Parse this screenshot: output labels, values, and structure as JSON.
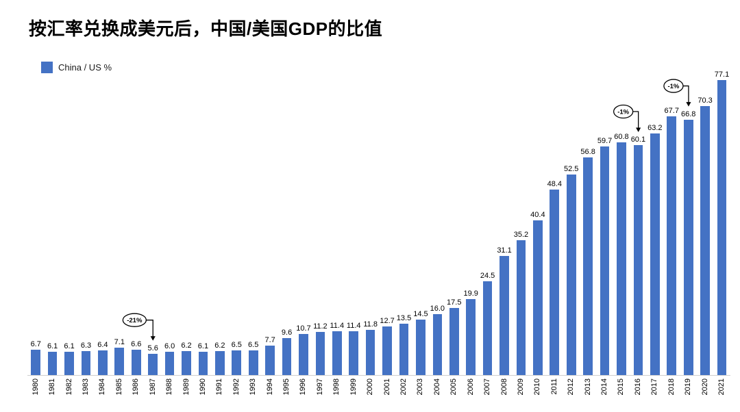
{
  "title": "按汇率兑换成美元后，中国/美国GDP的比值",
  "legend": {
    "label": "China / US %",
    "color": "#4472C4"
  },
  "chart_data": {
    "type": "bar",
    "title": "按汇率兑换成美元后，中国/美国GDP的比值",
    "series_name": "China / US %",
    "categories": [
      "1980",
      "1981",
      "1982",
      "1983",
      "1984",
      "1985",
      "1986",
      "1987",
      "1988",
      "1989",
      "1990",
      "1991",
      "1992",
      "1993",
      "1994",
      "1995",
      "1996",
      "1997",
      "1998",
      "1999",
      "2000",
      "2001",
      "2002",
      "2003",
      "2004",
      "2005",
      "2006",
      "2007",
      "2008",
      "2009",
      "2010",
      "2011",
      "2012",
      "2013",
      "2014",
      "2015",
      "2016",
      "2017",
      "2018",
      "2019",
      "2020",
      "2021"
    ],
    "values": [
      6.7,
      6.1,
      6.1,
      6.3,
      6.4,
      7.1,
      6.6,
      5.6,
      6.0,
      6.2,
      6.1,
      6.2,
      6.5,
      6.5,
      7.7,
      9.6,
      10.7,
      11.2,
      11.4,
      11.4,
      11.8,
      12.7,
      13.5,
      14.5,
      16.0,
      17.5,
      19.9,
      24.5,
      31.1,
      35.2,
      40.4,
      48.4,
      52.5,
      56.8,
      59.7,
      60.8,
      60.1,
      63.2,
      67.7,
      66.8,
      70.3,
      77.1
    ],
    "xlabel": "",
    "ylabel": "",
    "ylim": [
      0,
      80
    ],
    "grid": false,
    "legend_position": "top-left",
    "bar_color": "#4472C4",
    "value_labels": true,
    "annotations": [
      {
        "label": "-21%",
        "oval_index": 5.9,
        "target_index": 7
      },
      {
        "label": "-1%",
        "oval_index": 35.1,
        "target_index": 36
      },
      {
        "label": "-1%",
        "oval_index": 38.1,
        "target_index": 39
      }
    ]
  }
}
